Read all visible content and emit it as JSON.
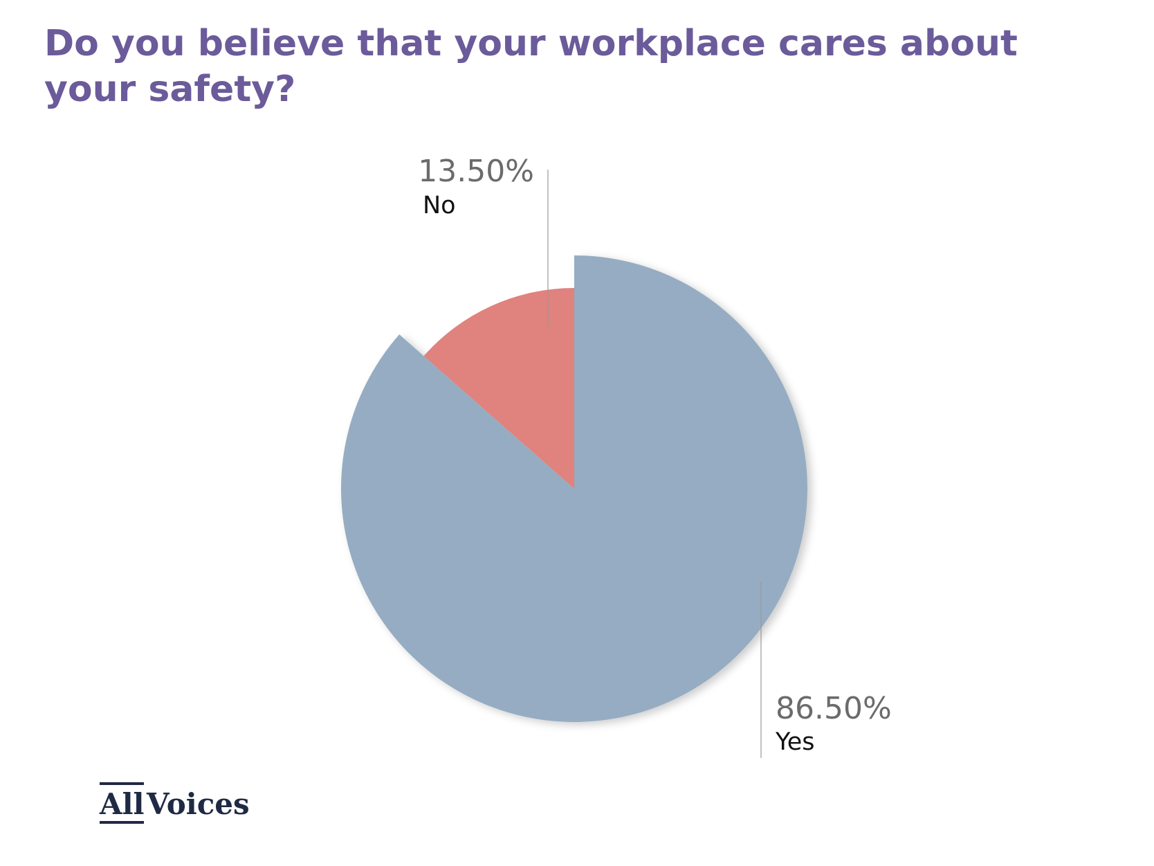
{
  "chart_data": {
    "type": "pie",
    "title": "Do you believe that your workplace cares about your safety?",
    "categories": [
      "Yes",
      "No"
    ],
    "values": [
      86.5,
      13.5
    ],
    "value_labels": [
      "86.50%",
      "13.50%"
    ],
    "colors": [
      "#96acc2",
      "#e0827d"
    ]
  },
  "logo": [
    "All",
    "Voices"
  ]
}
